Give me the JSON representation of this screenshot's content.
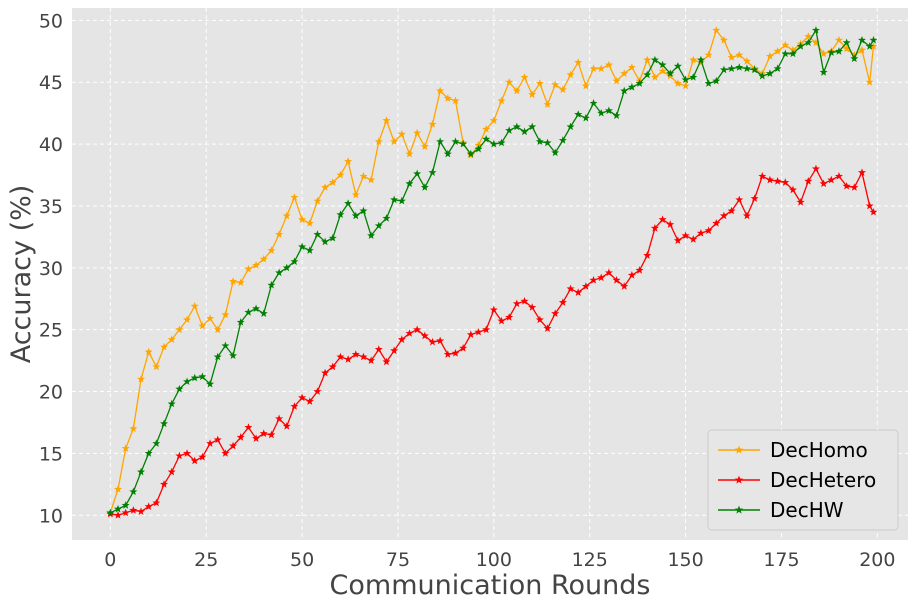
{
  "chart_data": {
    "type": "line",
    "xlabel": "Communication Rounds",
    "ylabel": "Accuracy (%)",
    "xlim": [
      -10,
      208
    ],
    "ylim": [
      8,
      51
    ],
    "xticks": [
      0,
      25,
      50,
      75,
      100,
      125,
      150,
      175,
      200
    ],
    "yticks": [
      10,
      15,
      20,
      25,
      30,
      35,
      40,
      45,
      50
    ],
    "grid": true,
    "legend_position": "bottom-right",
    "marker": "star",
    "series": [
      {
        "name": "DecHomo",
        "color": "#FFA500",
        "x": [
          0,
          2,
          4,
          6,
          8,
          10,
          12,
          14,
          16,
          18,
          20,
          22,
          24,
          26,
          28,
          30,
          32,
          34,
          36,
          38,
          40,
          42,
          44,
          46,
          48,
          50,
          52,
          54,
          56,
          58,
          60,
          62,
          64,
          66,
          68,
          70,
          72,
          74,
          76,
          78,
          80,
          82,
          84,
          86,
          88,
          90,
          92,
          94,
          96,
          98,
          100,
          102,
          104,
          106,
          108,
          110,
          112,
          114,
          116,
          118,
          120,
          122,
          124,
          126,
          128,
          130,
          132,
          134,
          136,
          138,
          140,
          142,
          144,
          146,
          148,
          150,
          152,
          154,
          156,
          158,
          160,
          162,
          164,
          166,
          168,
          170,
          172,
          174,
          176,
          178,
          180,
          182,
          184,
          186,
          188,
          190,
          192,
          194,
          196,
          198,
          199
        ],
        "y": [
          10.2,
          12.1,
          15.4,
          17.0,
          21.0,
          23.2,
          22.0,
          23.6,
          24.2,
          25.0,
          25.8,
          26.9,
          25.3,
          25.9,
          25.0,
          26.2,
          28.9,
          28.8,
          29.9,
          30.2,
          30.7,
          31.4,
          32.7,
          34.2,
          35.7,
          33.9,
          33.6,
          35.4,
          36.5,
          36.9,
          37.5,
          38.6,
          35.9,
          37.4,
          37.1,
          40.2,
          41.9,
          40.2,
          40.8,
          39.2,
          40.9,
          39.8,
          41.6,
          44.3,
          43.7,
          43.5,
          40.1,
          39.1,
          39.9,
          41.2,
          41.9,
          43.5,
          45.0,
          44.3,
          45.4,
          44.0,
          44.9,
          43.2,
          44.8,
          44.4,
          45.6,
          46.6,
          44.7,
          46.1,
          46.1,
          46.4,
          45.1,
          45.7,
          46.2,
          45.1,
          46.8,
          45.4,
          45.9,
          45.5,
          44.9,
          44.7,
          46.8,
          46.6,
          47.2,
          49.2,
          48.4,
          47.0,
          47.2,
          46.7,
          46.1,
          45.7,
          47.1,
          47.5,
          48.0,
          47.6,
          48.1,
          48.7,
          48.2,
          47.3,
          47.5,
          48.4,
          47.7,
          47.2,
          47.6,
          45.0,
          47.9
        ]
      },
      {
        "name": "DecHetero",
        "color": "#FF0000",
        "x": [
          0,
          2,
          4,
          6,
          8,
          10,
          12,
          14,
          16,
          18,
          20,
          22,
          24,
          26,
          28,
          30,
          32,
          34,
          36,
          38,
          40,
          42,
          44,
          46,
          48,
          50,
          52,
          54,
          56,
          58,
          60,
          62,
          64,
          66,
          68,
          70,
          72,
          74,
          76,
          78,
          80,
          82,
          84,
          86,
          88,
          90,
          92,
          94,
          96,
          98,
          100,
          102,
          104,
          106,
          108,
          110,
          112,
          114,
          116,
          118,
          120,
          122,
          124,
          126,
          128,
          130,
          132,
          134,
          136,
          138,
          140,
          142,
          144,
          146,
          148,
          150,
          152,
          154,
          156,
          158,
          160,
          162,
          164,
          166,
          168,
          170,
          172,
          174,
          176,
          178,
          180,
          182,
          184,
          186,
          188,
          190,
          192,
          194,
          196,
          198,
          199
        ],
        "y": [
          10.1,
          10.0,
          10.2,
          10.4,
          10.3,
          10.7,
          11.0,
          12.5,
          13.5,
          14.8,
          15.0,
          14.4,
          14.7,
          15.8,
          16.1,
          15.0,
          15.6,
          16.3,
          17.1,
          16.2,
          16.6,
          16.5,
          17.8,
          17.2,
          18.8,
          19.5,
          19.2,
          20.0,
          21.5,
          22.0,
          22.8,
          22.6,
          23.0,
          22.8,
          22.5,
          23.4,
          22.4,
          23.3,
          24.2,
          24.7,
          25.0,
          24.5,
          24.0,
          24.1,
          23.0,
          23.1,
          23.5,
          24.6,
          24.8,
          25.0,
          26.6,
          25.7,
          26.0,
          27.1,
          27.3,
          26.8,
          25.8,
          25.1,
          26.3,
          27.2,
          28.3,
          28.0,
          28.5,
          29.0,
          29.2,
          29.6,
          29.0,
          28.5,
          29.4,
          29.8,
          31.0,
          33.2,
          33.9,
          33.5,
          32.2,
          32.6,
          32.3,
          32.8,
          33.0,
          33.6,
          34.2,
          34.6,
          35.5,
          34.2,
          35.6,
          37.4,
          37.1,
          37.0,
          36.9,
          36.3,
          35.3,
          37.0,
          38.0,
          36.8,
          37.1,
          37.4,
          36.6,
          36.5,
          37.7,
          35.0,
          34.5
        ]
      },
      {
        "name": "DecHW",
        "color": "#008000",
        "x": [
          0,
          2,
          4,
          6,
          8,
          10,
          12,
          14,
          16,
          18,
          20,
          22,
          24,
          26,
          28,
          30,
          32,
          34,
          36,
          38,
          40,
          42,
          44,
          46,
          48,
          50,
          52,
          54,
          56,
          58,
          60,
          62,
          64,
          66,
          68,
          70,
          72,
          74,
          76,
          78,
          80,
          82,
          84,
          86,
          88,
          90,
          92,
          94,
          96,
          98,
          100,
          102,
          104,
          106,
          108,
          110,
          112,
          114,
          116,
          118,
          120,
          122,
          124,
          126,
          128,
          130,
          132,
          134,
          136,
          138,
          140,
          142,
          144,
          146,
          148,
          150,
          152,
          154,
          156,
          158,
          160,
          162,
          164,
          166,
          168,
          170,
          172,
          174,
          176,
          178,
          180,
          182,
          184,
          186,
          188,
          190,
          192,
          194,
          196,
          198,
          199
        ],
        "y": [
          10.2,
          10.5,
          10.8,
          11.9,
          13.5,
          15.0,
          15.8,
          17.4,
          19.0,
          20.2,
          20.8,
          21.1,
          21.2,
          20.6,
          22.8,
          23.7,
          22.9,
          25.6,
          26.4,
          26.7,
          26.3,
          28.6,
          29.6,
          30.0,
          30.5,
          31.7,
          31.4,
          32.7,
          32.1,
          32.4,
          34.3,
          35.2,
          34.2,
          34.6,
          32.6,
          33.4,
          34.0,
          35.5,
          35.4,
          36.8,
          37.6,
          36.5,
          37.7,
          40.2,
          39.2,
          40.2,
          40.0,
          39.2,
          39.6,
          40.4,
          40.0,
          40.1,
          41.1,
          41.4,
          41.0,
          41.4,
          40.2,
          40.1,
          39.3,
          40.3,
          41.4,
          42.4,
          42.1,
          43.3,
          42.5,
          42.7,
          42.3,
          44.3,
          44.6,
          44.9,
          45.6,
          46.8,
          46.4,
          45.7,
          46.3,
          45.2,
          45.4,
          46.8,
          44.9,
          45.1,
          46.0,
          46.1,
          46.2,
          46.1,
          46.0,
          45.5,
          45.7,
          46.1,
          47.3,
          47.3,
          47.9,
          48.2,
          49.2,
          45.8,
          47.4,
          47.5,
          48.2,
          46.9,
          48.4,
          47.9,
          48.4
        ]
      }
    ]
  }
}
